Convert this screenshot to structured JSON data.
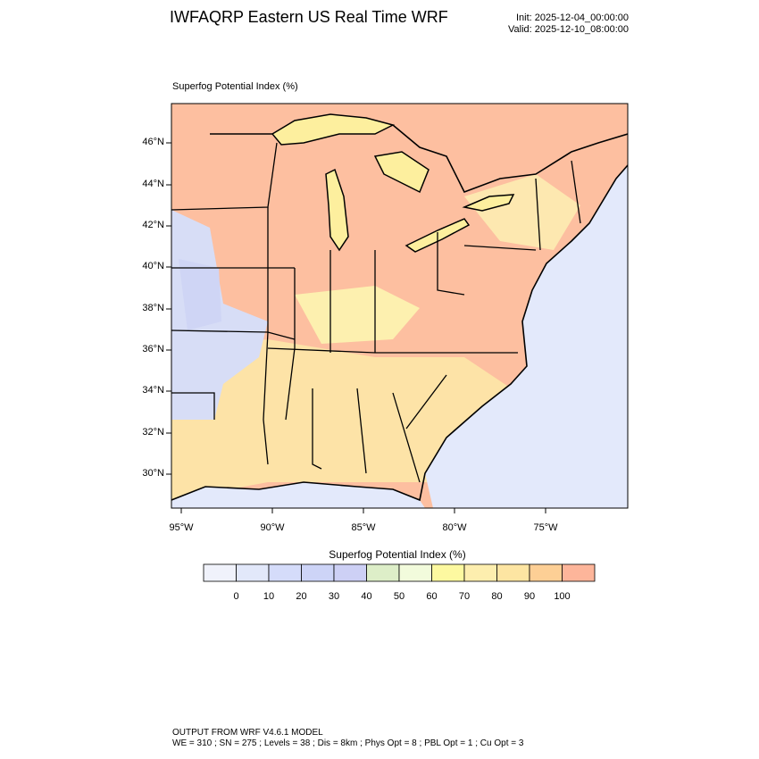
{
  "header": {
    "title": "IWFAQRP Eastern US Real Time WRF",
    "init": "Init: 2025-12-04_00:00:00",
    "valid": "Valid: 2025-12-10_08:00:00"
  },
  "field_label": "Superfog Potential Index   (%)",
  "map": {
    "lat_labels": [
      "46°N",
      "44°N",
      "42°N",
      "40°N",
      "38°N",
      "36°N",
      "34°N",
      "32°N",
      "30°N"
    ],
    "lon_labels": [
      "95°W",
      "90°W",
      "85°W",
      "80°W",
      "75°W"
    ]
  },
  "colorbar": {
    "title": "Superfog Potential Index  (%)",
    "colors": [
      "#f0f2fb",
      "#e2e8fa",
      "#d5dcfa",
      "#cdd4f7",
      "#cdd0f5",
      "#ddeec8",
      "#f2fbdc",
      "#fdf9a0",
      "#fdeeae",
      "#fde5a2",
      "#fdcf95",
      "#fdb59a"
    ],
    "tick_labels": [
      "0",
      "10",
      "20",
      "30",
      "40",
      "50",
      "60",
      "70",
      "80",
      "90",
      "100"
    ]
  },
  "footer": {
    "line1": "OUTPUT FROM WRF V4.6.1 MODEL",
    "line2": "WE = 310 ; SN = 275 ; Levels = 38 ; Dis = 8km ; Phys Opt = 8 ; PBL Opt = 1 ; Cu Opt = 3"
  }
}
